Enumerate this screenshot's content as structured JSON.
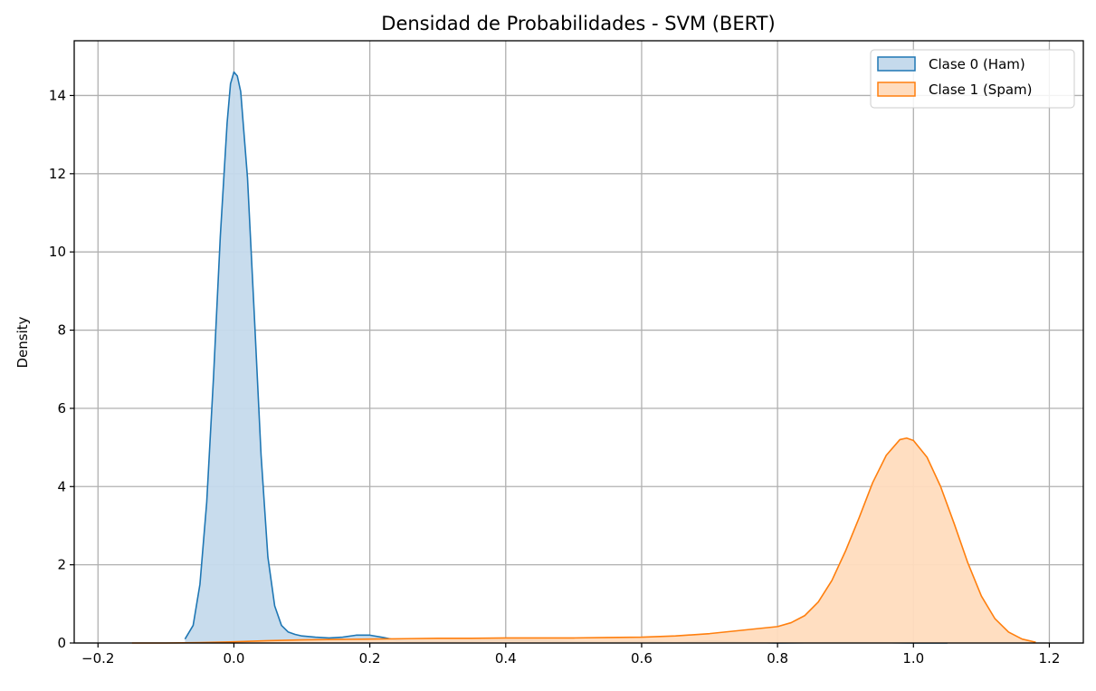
{
  "chart_data": {
    "type": "area",
    "title": "Densidad de Probabilidades - SVM (BERT)",
    "xlabel": "",
    "ylabel": "Density",
    "xlim": [
      -0.235,
      1.25
    ],
    "ylim": [
      0,
      15.4
    ],
    "xticks": [
      -0.2,
      0.0,
      0.2,
      0.4,
      0.6,
      0.8,
      1.0,
      1.2
    ],
    "xtick_labels": [
      "−0.2",
      "0.0",
      "0.2",
      "0.4",
      "0.6",
      "0.8",
      "1.0",
      "1.2"
    ],
    "yticks": [
      0,
      2,
      4,
      6,
      8,
      10,
      12,
      14
    ],
    "ytick_labels": [
      "0",
      "2",
      "4",
      "6",
      "8",
      "10",
      "12",
      "14"
    ],
    "grid": true,
    "legend_position": "top-right",
    "series": [
      {
        "name": "Clase 0 (Ham)",
        "line_color": "#1f77b4",
        "fill_color": "#c5daec",
        "x": [
          -0.072,
          -0.06,
          -0.05,
          -0.04,
          -0.03,
          -0.02,
          -0.01,
          -0.005,
          0.0,
          0.005,
          0.01,
          0.02,
          0.03,
          0.04,
          0.05,
          0.06,
          0.07,
          0.08,
          0.09,
          0.1,
          0.12,
          0.14,
          0.16,
          0.18,
          0.2,
          0.22,
          0.24,
          0.26,
          0.3,
          0.35,
          0.4,
          0.45,
          0.5,
          0.55,
          0.6,
          0.65,
          0.7,
          0.75,
          0.8,
          0.85,
          0.9,
          0.95,
          1.0,
          1.05
        ],
        "y": [
          0.1,
          0.45,
          1.5,
          3.6,
          6.8,
          10.4,
          13.3,
          14.3,
          14.6,
          14.5,
          14.1,
          11.9,
          8.4,
          4.8,
          2.2,
          0.95,
          0.45,
          0.28,
          0.22,
          0.18,
          0.15,
          0.13,
          0.15,
          0.2,
          0.2,
          0.14,
          0.07,
          0.05,
          0.04,
          0.05,
          0.07,
          0.06,
          0.03,
          0.02,
          0.04,
          0.01,
          0.05,
          0.02,
          0.0,
          0.01,
          0.02,
          0.01,
          0.0,
          0.0
        ]
      },
      {
        "name": "Clase 1 (Spam)",
        "line_color": "#ff7f0e",
        "fill_color": "#ffdcbe",
        "x": [
          -0.15,
          -0.1,
          -0.05,
          0.0,
          0.05,
          0.1,
          0.15,
          0.2,
          0.25,
          0.3,
          0.35,
          0.4,
          0.45,
          0.5,
          0.55,
          0.6,
          0.65,
          0.7,
          0.75,
          0.8,
          0.82,
          0.84,
          0.86,
          0.88,
          0.9,
          0.92,
          0.94,
          0.96,
          0.98,
          0.99,
          1.0,
          1.02,
          1.04,
          1.06,
          1.08,
          1.1,
          1.12,
          1.14,
          1.16,
          1.18
        ],
        "y": [
          0.0,
          0.0,
          0.01,
          0.03,
          0.06,
          0.08,
          0.09,
          0.1,
          0.11,
          0.12,
          0.12,
          0.13,
          0.13,
          0.13,
          0.14,
          0.15,
          0.18,
          0.24,
          0.33,
          0.42,
          0.52,
          0.7,
          1.05,
          1.6,
          2.35,
          3.2,
          4.1,
          4.8,
          5.2,
          5.24,
          5.18,
          4.75,
          4.0,
          3.05,
          2.05,
          1.2,
          0.62,
          0.28,
          0.1,
          0.02
        ]
      }
    ]
  }
}
